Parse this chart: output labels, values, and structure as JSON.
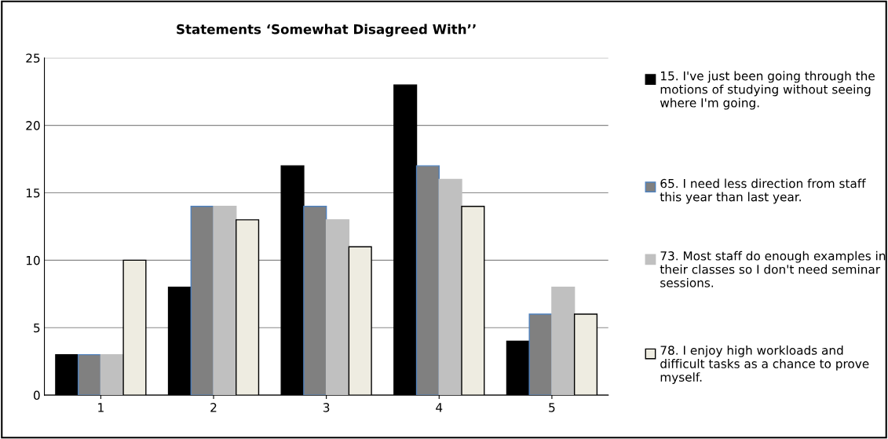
{
  "chart_data": {
    "type": "bar",
    "title": "Statements ‘Somewhat Disagreed With’’",
    "categories": [
      "1",
      "2",
      "3",
      "4",
      "5"
    ],
    "series": [
      {
        "name": "15. I've just been going through the motions of studying without seeing where I'm going.",
        "color": "#000000",
        "values": [
          3,
          8,
          17,
          23,
          4
        ]
      },
      {
        "name": "65. I need less direction from staff this year than last year.",
        "color": "#808080",
        "values": [
          3,
          14,
          14,
          17,
          6
        ]
      },
      {
        "name": "73. Most staff do enough examples in their classes so I don't need seminar sessions.",
        "color": "#c0c0c0",
        "values": [
          3,
          14,
          13,
          16,
          8
        ]
      },
      {
        "name": "78. I enjoy high workloads and difficult tasks as a chance to prove myself.",
        "color": "#eeece1",
        "values": [
          10,
          13,
          11,
          14,
          6
        ]
      }
    ],
    "ylim": [
      0,
      25
    ],
    "yticks": [
      0,
      5,
      10,
      15,
      20,
      25
    ],
    "grid": "y",
    "legend": "right"
  }
}
